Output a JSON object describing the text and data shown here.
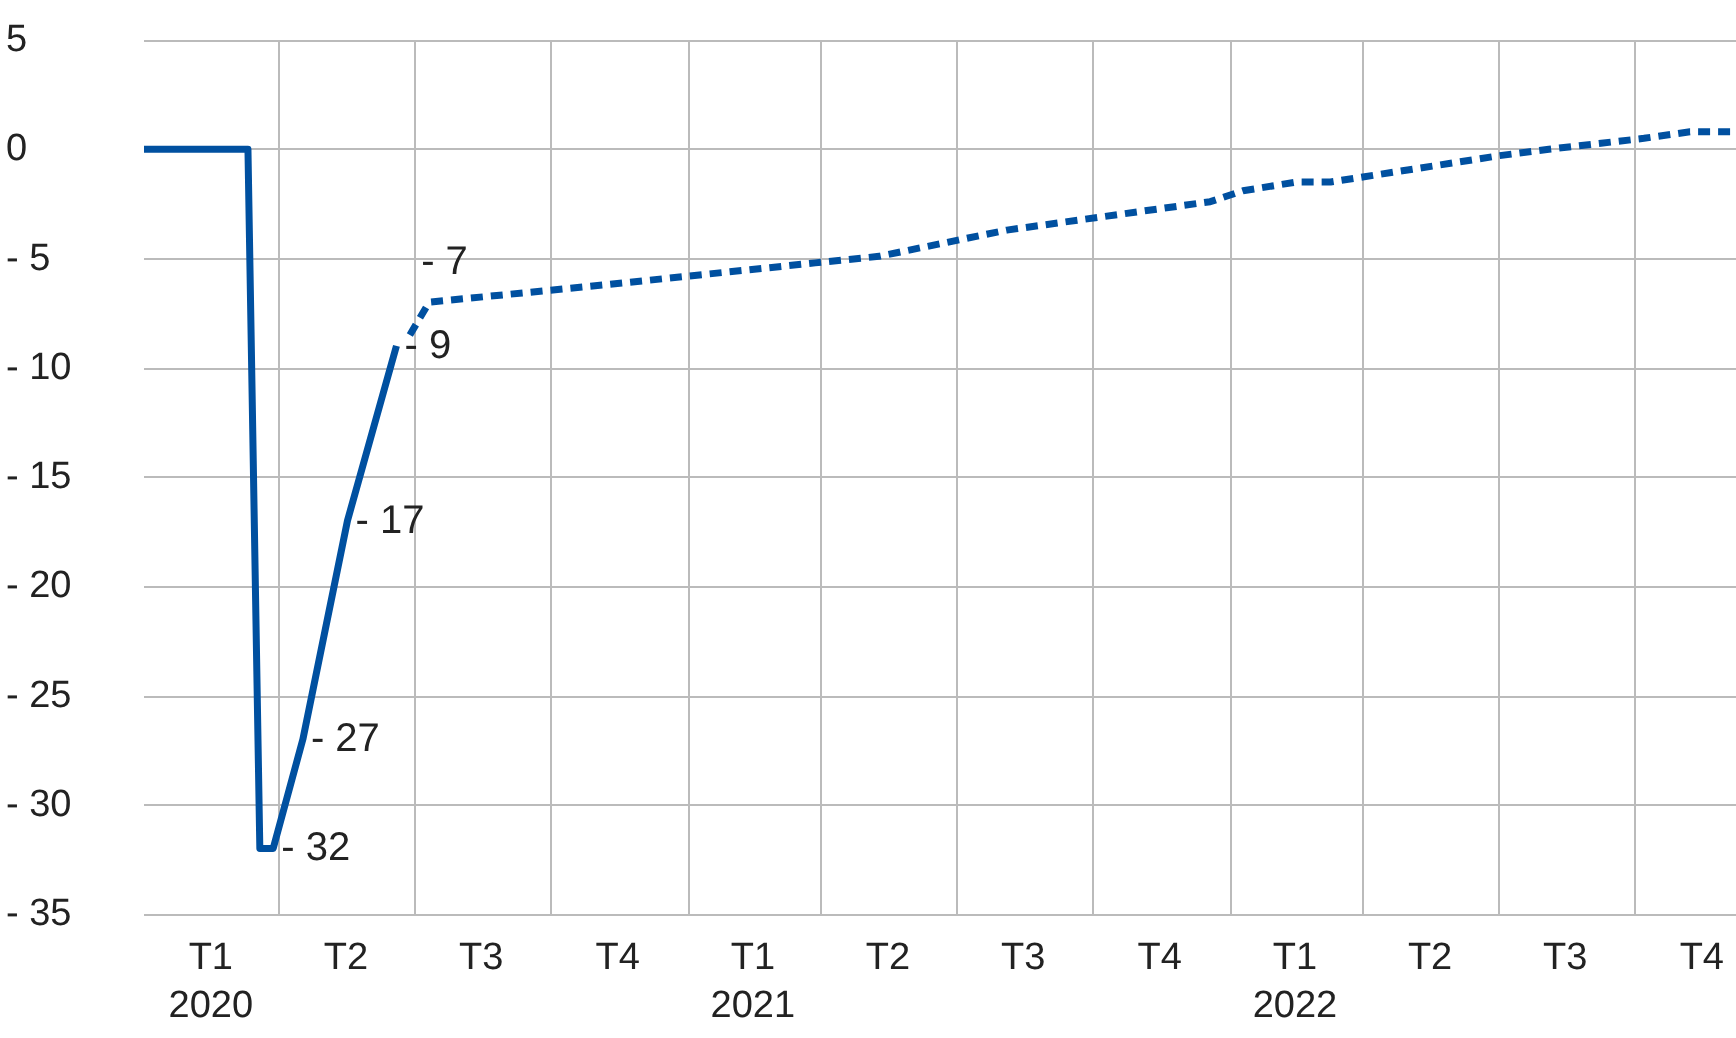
{
  "chart_data": {
    "type": "line",
    "xlim": [
      "2020-01-01",
      "2022-12-08"
    ],
    "ylim": [
      -35,
      5
    ],
    "xticks": [
      {
        "value": "2020-02-15",
        "label": "T1\n2020"
      },
      {
        "value": "2020-05-16",
        "label": "T2"
      },
      {
        "value": "2020-08-15",
        "label": "T3"
      },
      {
        "value": "2020-11-15",
        "label": "T4"
      },
      {
        "value": "2021-02-14",
        "label": "T1\n2021"
      },
      {
        "value": "2021-05-16",
        "label": "T2"
      },
      {
        "value": "2021-08-15",
        "label": "T3"
      },
      {
        "value": "2021-11-15",
        "label": "T4"
      },
      {
        "value": "2022-02-14",
        "label": "T1\n2022"
      },
      {
        "value": "2022-05-16",
        "label": "T2"
      },
      {
        "value": "2022-08-15",
        "label": "T3"
      },
      {
        "value": "2022-11-15",
        "label": "T4"
      },
      {
        "value": "2020-04-01",
        "label": null
      },
      {
        "value": "2020-07-01",
        "label": null
      },
      {
        "value": "2020-10-01",
        "label": null
      },
      {
        "value": "2021-01-01",
        "label": null
      },
      {
        "value": "2021-04-01",
        "label": null
      },
      {
        "value": "2021-07-01",
        "label": null
      },
      {
        "value": "2021-10-01",
        "label": null
      },
      {
        "value": "2022-01-01",
        "label": null
      },
      {
        "value": "2022-04-01",
        "label": null
      },
      {
        "value": "2022-07-01",
        "label": null
      },
      {
        "value": "2022-10-01",
        "label": null
      }
    ],
    "yticks": [
      5,
      0,
      {
        "value": -5,
        "label": "- 5"
      },
      {
        "value": -10,
        "label": "- 10"
      },
      {
        "value": -15,
        "label": "- 15"
      },
      {
        "value": -20,
        "label": "- 20"
      },
      {
        "value": -25,
        "label": "- 25"
      },
      {
        "value": -30,
        "label": "- 30"
      },
      {
        "value": -35,
        "label": "- 35"
      }
    ],
    "grid": true,
    "marker": "none",
    "series": [
      {
        "color": "#0050a0",
        "line_style": "solid",
        "x": [
          "2020-01-01",
          "2020-03-11",
          "2020-03-19",
          "2020-03-28",
          "2020-04-17",
          "2020-05-17",
          "2020-06-19"
        ],
        "values": [
          0,
          0,
          -32,
          -32,
          -27,
          -17,
          -9
        ],
        "value_labels": [
          null,
          null,
          null,
          "- 32",
          "- 27",
          "- 17",
          "- 9"
        ]
      },
      {
        "color": "#0050a0",
        "line_style": "dashed",
        "x": [
          "2020-06-28",
          "2020-07-11",
          "2020-11-07",
          "2021-03-28",
          "2021-05-10",
          "2021-08-04",
          "2021-12-19",
          "2022-01-10",
          "2022-02-15",
          "2022-03-10",
          "2022-07-01",
          "2022-08-04",
          "2022-10-07",
          "2022-11-07",
          "2022-12-07"
        ],
        "values": [
          -8.5,
          -7,
          -6.2,
          -5.2,
          -4.9,
          -3.7,
          -2.4,
          -1.9,
          -1.5,
          -1.5,
          -0.3,
          0,
          0.5,
          0.8,
          0.8
        ],
        "value_labels": [
          null,
          "- 7",
          null,
          null,
          null,
          null,
          null,
          null,
          null,
          null,
          null,
          null,
          null,
          null,
          null
        ]
      }
    ]
  }
}
